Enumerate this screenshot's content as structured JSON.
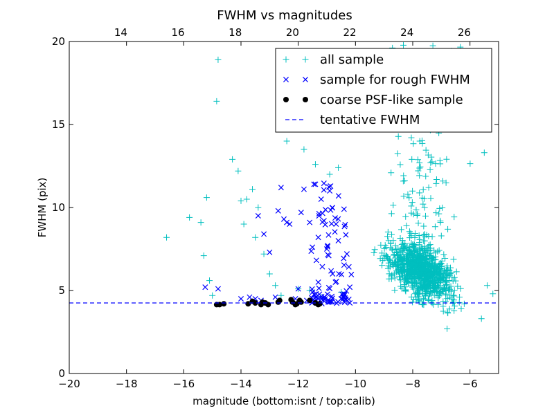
{
  "chart_data": {
    "type": "scatter",
    "title": "FWHM vs magnitudes",
    "xlabel": "magnitude (bottom:isnt / top:calib)",
    "ylabel": "FWHM (pix)",
    "xlim": [
      -20,
      -5
    ],
    "ylim": [
      0,
      20
    ],
    "x_ticks": [
      -20,
      -18,
      -16,
      -14,
      -12,
      -10,
      -8,
      -6
    ],
    "x_tick_labels": [
      "−20",
      "−18",
      "−16",
      "−14",
      "−12",
      "−10",
      "−8",
      "−6"
    ],
    "y_ticks": [
      0,
      5,
      10,
      15,
      20
    ],
    "y_tick_labels": [
      "0",
      "5",
      "10",
      "15",
      "20"
    ],
    "top_xlim": [
      12.2,
      27.2
    ],
    "top_ticks": [
      14,
      16,
      18,
      20,
      22,
      24,
      26
    ],
    "top_tick_labels": [
      "14",
      "16",
      "18",
      "20",
      "22",
      "24",
      "26"
    ],
    "legend_position": "top-right",
    "tentative_fwhm": 4.25,
    "series": [
      {
        "name": "all sample",
        "marker": "plus",
        "color": "#00bfbf",
        "x": [
          -16.6,
          -15.8,
          -15.4,
          -15.3,
          -15.2,
          -15.1,
          -15.0,
          -14.8,
          -14.85,
          -14.3,
          -14.1,
          -14.0,
          -13.9,
          -13.8,
          -13.6,
          -13.5,
          -13.4,
          -13.2,
          -13.0,
          -12.8,
          -12.6,
          -12.4,
          -12.0,
          -11.8,
          -11.6,
          -11.4,
          -11.2,
          -10.9,
          -10.6,
          -10.5,
          -5.5,
          -5.4,
          -5.2,
          -5.6,
          -6.2,
          -6.8
        ],
        "y": [
          8.2,
          9.4,
          9.1,
          7.1,
          10.6,
          5.6,
          4.7,
          18.9,
          16.4,
          12.9,
          12.2,
          10.4,
          9.0,
          10.5,
          11.1,
          8.2,
          10.0,
          7.2,
          6.0,
          5.3,
          4.7,
          14.0,
          5.1,
          13.5,
          5.0,
          12.6,
          4.6,
          12.0,
          12.4,
          4.9,
          13.3,
          5.3,
          4.8,
          3.3,
          4.2,
          2.7
        ],
        "cloud": {
          "x_range": [
            -10.5,
            -5.5
          ],
          "y_range": [
            2.5,
            20
          ],
          "center_x": -7.7,
          "center_y": 6.2,
          "count": 1100
        }
      },
      {
        "name": "sample for rough FWHM",
        "marker": "x",
        "color": "#0000ff",
        "x": [
          -15.25,
          -14.8,
          -13.7,
          -13.5,
          -13.4,
          -13.2,
          -13.0,
          -12.8,
          -12.7,
          -12.6,
          -12.5,
          -12.3,
          -12.1,
          -12.0,
          -11.8,
          -11.6,
          -11.5,
          -11.4,
          -11.3,
          -11.2,
          -11.1,
          -11.0,
          -10.9,
          -10.8,
          -10.7,
          -10.6,
          -10.5,
          -10.4,
          -10.3,
          -10.2,
          -14.0,
          -13.3,
          -12.4,
          -11.9,
          -11.7,
          -11.45,
          -11.3,
          -10.95
        ],
        "y": [
          5.2,
          5.1,
          4.6,
          4.5,
          9.5,
          8.4,
          7.3,
          4.6,
          9.8,
          11.2,
          9.3,
          9.0,
          4.5,
          5.1,
          11.1,
          9.1,
          4.9,
          11.4,
          8.2,
          10.5,
          9.2,
          7.5,
          11.0,
          6.0,
          5.5,
          8.0,
          4.5,
          9.9,
          7.2,
          5.2,
          4.5,
          4.4,
          9.1,
          9.7,
          4.4,
          11.4,
          5.5,
          4.3
        ],
        "cloud": {
          "x_range": [
            -11.6,
            -10.1
          ],
          "y_range": [
            4.2,
            12.0
          ],
          "count": 90
        }
      },
      {
        "name": "coarse PSF-like sample",
        "marker": "circle",
        "color": "#000000",
        "x": [
          -14.85,
          -14.75,
          -14.6,
          -13.75,
          -13.6,
          -13.5,
          -13.3,
          -13.25,
          -13.15,
          -13.05,
          -12.7,
          -12.65,
          -12.25,
          -12.2,
          -12.1,
          -12.05,
          -11.95,
          -11.9,
          -11.6,
          -11.4,
          -11.3,
          -11.25
        ],
        "y": [
          4.15,
          4.15,
          4.2,
          4.2,
          4.35,
          4.25,
          4.15,
          4.3,
          4.25,
          4.15,
          4.3,
          4.4,
          4.45,
          4.3,
          4.15,
          4.2,
          4.4,
          4.3,
          4.4,
          4.25,
          4.15,
          4.2
        ]
      }
    ],
    "legend": [
      {
        "label": "all sample",
        "marker": "plus",
        "color": "#00bfbf"
      },
      {
        "label": "sample for rough FWHM",
        "marker": "x",
        "color": "#0000ff"
      },
      {
        "label": "coarse PSF-like sample",
        "marker": "circle",
        "color": "#000000"
      },
      {
        "label": "tentative FWHM",
        "marker": "dashed-line",
        "color": "#0000ff"
      }
    ]
  }
}
